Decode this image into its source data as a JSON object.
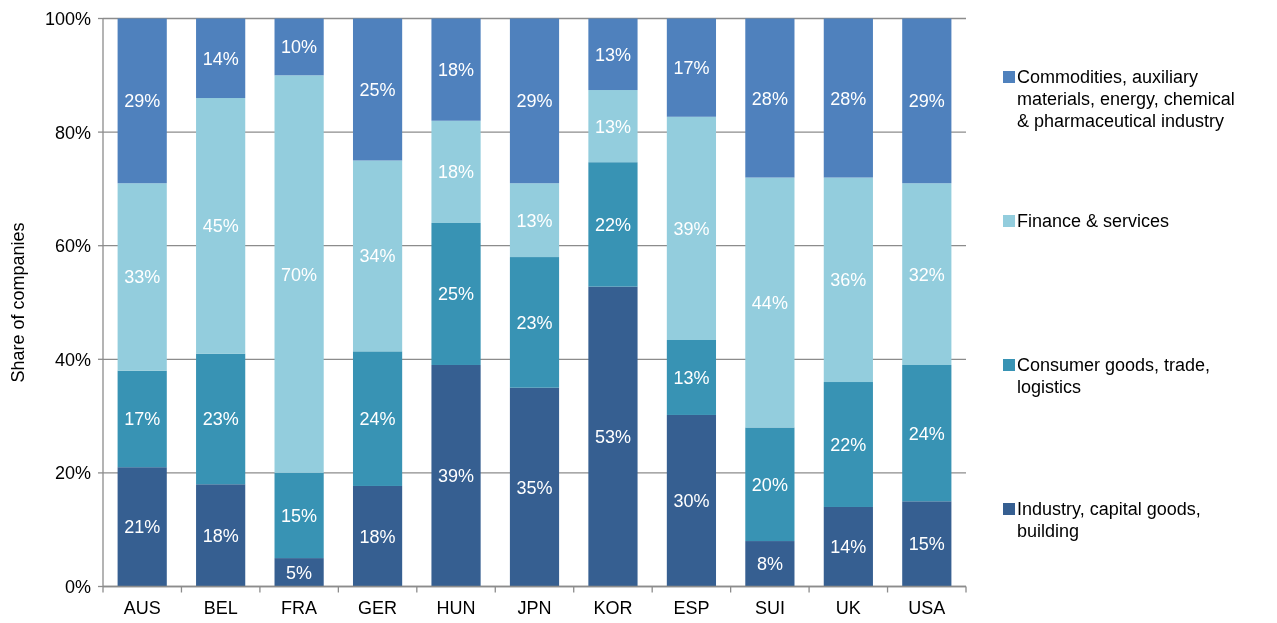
{
  "chart_data": {
    "type": "bar",
    "stacked": true,
    "categories": [
      "AUS",
      "BEL",
      "FRA",
      "GER",
      "HUN",
      "JPN",
      "KOR",
      "ESP",
      "SUI",
      "UK",
      "USA"
    ],
    "series": [
      {
        "name": "Industry, capital goods, building",
        "color": "#365f91",
        "values": [
          21,
          18,
          5,
          17.7,
          39,
          35,
          52.8,
          30.2,
          8,
          14,
          15
        ],
        "value_labels": [
          "21%",
          "18%",
          "5%",
          "18%",
          "39%",
          "35%",
          "53%",
          "30%",
          "8%",
          "14%",
          "15%"
        ]
      },
      {
        "name": "Consumer goods, trade, logistics",
        "color": "#3893b4",
        "values": [
          17,
          23,
          15,
          23.7,
          25,
          23,
          21.9,
          13.2,
          20,
          22,
          24
        ],
        "value_labels": [
          "17%",
          "23%",
          "15%",
          "24%",
          "25%",
          "23%",
          "22%",
          "13%",
          "20%",
          "22%",
          "24%"
        ]
      },
      {
        "name": "Finance & services",
        "color": "#93cddd",
        "values": [
          33,
          45,
          70,
          33.6,
          18,
          13,
          12.7,
          39.3,
          44,
          36,
          32
        ],
        "value_labels": [
          "33%",
          "45%",
          "70%",
          "34%",
          "18%",
          "13%",
          "13%",
          "39%",
          "44%",
          "36%",
          "32%"
        ]
      },
      {
        "name": "Commodities, auxiliary materials, energy, chemical & pharmaceutical industry",
        "color": "#4f81bd",
        "values": [
          29,
          14,
          10,
          25,
          18,
          29,
          12.6,
          17.3,
          28,
          28,
          29
        ],
        "value_labels": [
          "29%",
          "14%",
          "10%",
          "25%",
          "18%",
          "29%",
          "13%",
          "17%",
          "28%",
          "28%",
          "29%"
        ]
      }
    ],
    "ylabel": "Share of companies",
    "ylim": [
      0,
      100
    ],
    "yticks": [
      {
        "value": 0,
        "label": "0%"
      },
      {
        "value": 20,
        "label": "20%"
      },
      {
        "value": 40,
        "label": "40%"
      },
      {
        "value": 60,
        "label": "60%"
      },
      {
        "value": 80,
        "label": "80%"
      },
      {
        "value": 100,
        "label": "100%"
      }
    ],
    "grid": "y",
    "legend": "right"
  }
}
